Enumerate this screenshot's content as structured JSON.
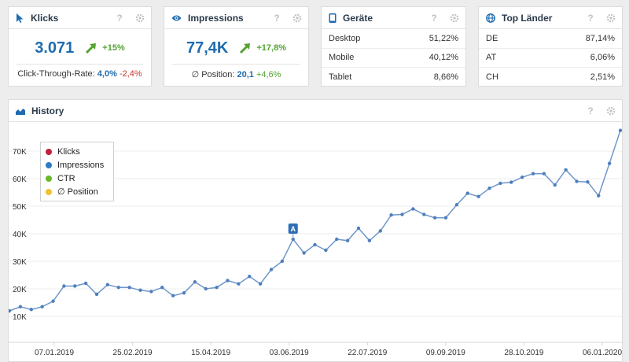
{
  "klicks": {
    "title": "Klicks",
    "value": "3.071",
    "delta": "+15%",
    "ctr_label": "Click-Through-Rate:",
    "ctr_value": "4,0%",
    "ctr_delta": "-2,4%"
  },
  "impressions": {
    "title": "Impressions",
    "value": "77,4K",
    "delta": "+17,8%",
    "pos_label": "∅ Position:",
    "pos_value": "20,1",
    "pos_delta": "+4,6%"
  },
  "geraete": {
    "title": "Geräte",
    "rows": [
      {
        "label": "Desktop",
        "value": "51,22%"
      },
      {
        "label": "Mobile",
        "value": "40,12%"
      },
      {
        "label": "Tablet",
        "value": "8,66%"
      }
    ]
  },
  "laender": {
    "title": "Top Länder",
    "rows": [
      {
        "label": "DE",
        "value": "87,14%"
      },
      {
        "label": "AT",
        "value": "6,06%"
      },
      {
        "label": "CH",
        "value": "2,51%"
      }
    ]
  },
  "history": {
    "title": "History",
    "help": "?"
  },
  "colors": {
    "accent": "#1e6bb0",
    "positive": "#54a332",
    "negative": "#c0392b",
    "line": "#6f97c9"
  },
  "icons": {
    "klicks": "cursor-icon",
    "impressions": "eye-icon",
    "geraete": "device-icon",
    "laender": "globe-icon",
    "history": "area-chart-icon"
  },
  "chart_data": {
    "type": "line",
    "title": "",
    "xlabel": "",
    "ylabel": "",
    "ylim": [
      0,
      80000
    ],
    "yticks": [
      10000,
      20000,
      30000,
      40000,
      50000,
      60000,
      70000
    ],
    "ytick_labels": [
      "10K",
      "20K",
      "30K",
      "40K",
      "50K",
      "60K",
      "70K"
    ],
    "xtick_labels": [
      "07.01.2019",
      "25.02.2019",
      "15.04.2019",
      "03.06.2019",
      "22.07.2019",
      "09.09.2019",
      "28.10.2019",
      "06.01.2020"
    ],
    "legend": [
      "Klicks",
      "Impressions",
      "CTR",
      "∅ Position"
    ],
    "legend_colors": [
      "#c21f3a",
      "#2d7bc4",
      "#6ab82b",
      "#f2c12e"
    ],
    "legend_position": "top-left",
    "annotation": {
      "label": "A",
      "index": 26
    },
    "series": [
      {
        "name": "Impressions",
        "values": [
          12000,
          13500,
          12500,
          13500,
          15500,
          21000,
          21000,
          22000,
          18000,
          21500,
          20500,
          20500,
          19500,
          19000,
          20500,
          17500,
          18500,
          22500,
          20000,
          20500,
          23000,
          21800,
          24500,
          21800,
          27000,
          30000,
          38000,
          33000,
          36000,
          34000,
          38000,
          37500,
          42000,
          37500,
          41000,
          46800,
          47000,
          49000,
          47000,
          45800,
          45800,
          50500,
          54700,
          53500,
          56500,
          58300,
          58700,
          60500,
          61800,
          61800,
          57700,
          63200,
          59000,
          58800,
          53800,
          65500,
          77500
        ]
      }
    ]
  }
}
